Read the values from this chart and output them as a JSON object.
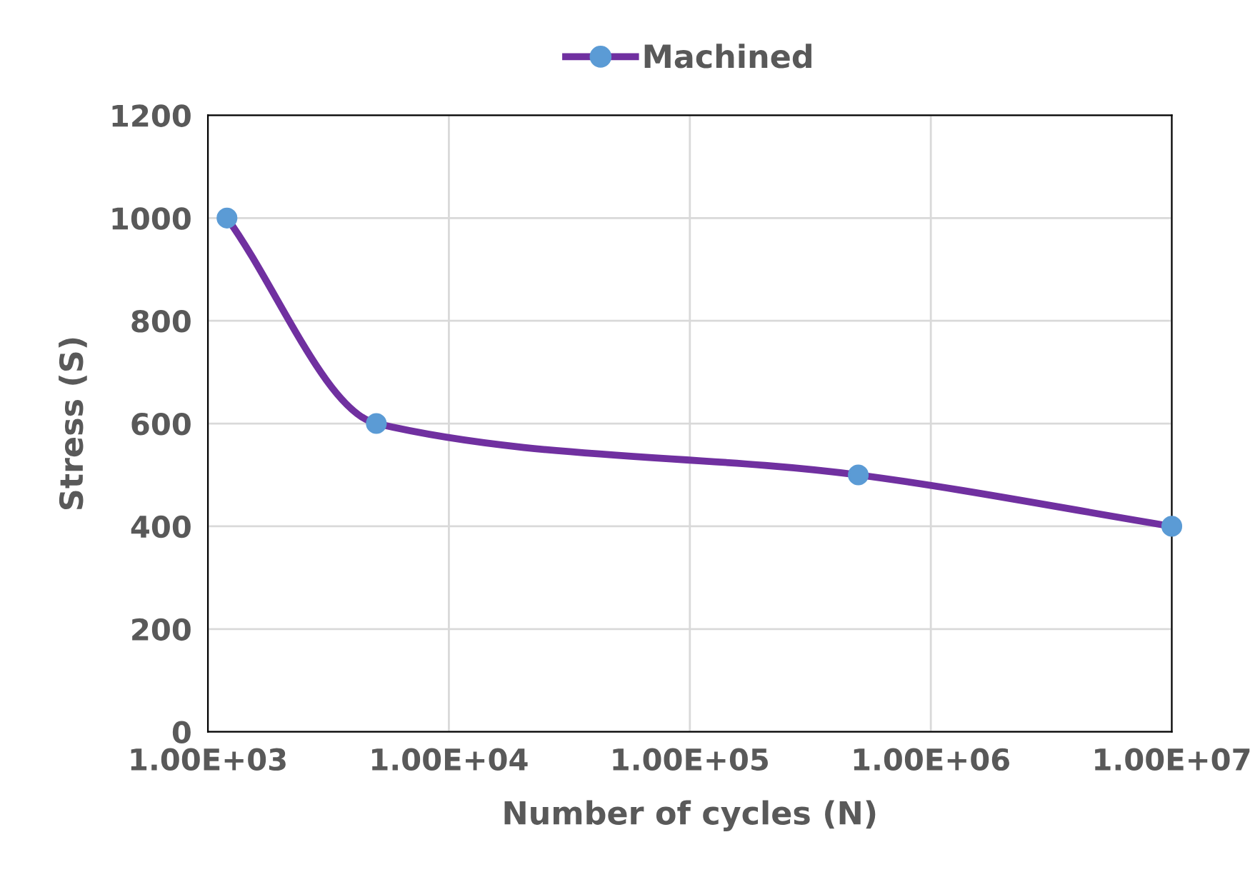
{
  "chart_data": {
    "type": "line",
    "xlabel": "Number of cycles (N)",
    "ylabel": "Stress (S)",
    "log": "x",
    "xlim": [
      1000,
      10000000
    ],
    "ylim": [
      0,
      1200
    ],
    "xticks": [
      {
        "value": 1000,
        "label": "1.00E+03"
      },
      {
        "value": 10000,
        "label": "1.00E+04"
      },
      {
        "value": 100000,
        "label": "1.00E+05"
      },
      {
        "value": 1000000,
        "label": "1.00E+06"
      },
      {
        "value": 10000000,
        "label": "1.00E+07"
      }
    ],
    "yticks": [
      0,
      200,
      400,
      600,
      800,
      1000,
      1200
    ],
    "grid": true,
    "legend": "top",
    "marker": "circle",
    "line_style": "solid",
    "series": [
      {
        "name": "Machined",
        "color": "#7030a0",
        "x": [
          1200,
          5000,
          500000,
          10000000
        ],
        "values": [
          1000,
          600,
          500,
          400
        ]
      }
    ]
  }
}
